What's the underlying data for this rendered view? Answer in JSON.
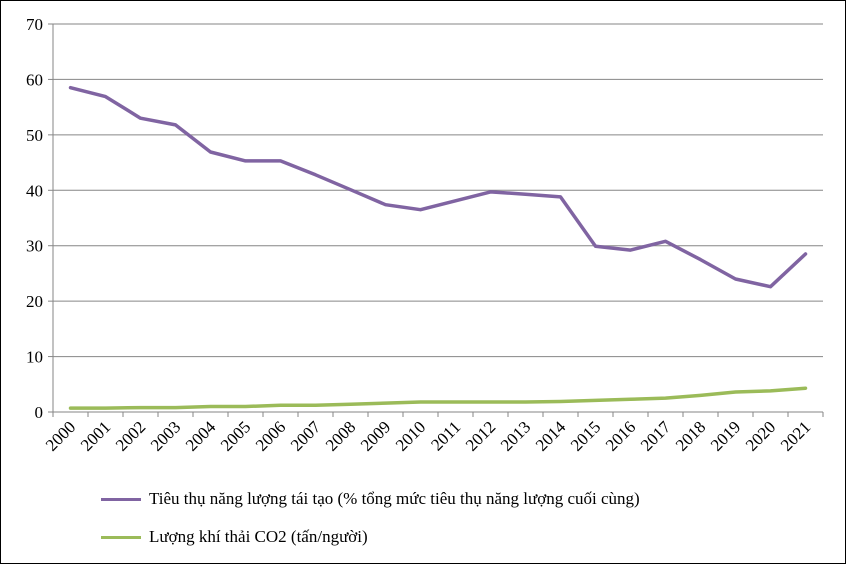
{
  "chart_data": {
    "type": "line",
    "categories": [
      "2000",
      "2001",
      "2002",
      "2003",
      "2004",
      "2005",
      "2006",
      "2007",
      "2008",
      "2009",
      "2010",
      "2011",
      "2012",
      "2013",
      "2014",
      "2015",
      "2016",
      "2017",
      "2018",
      "2019",
      "2020",
      "2021"
    ],
    "ylim": [
      0,
      70
    ],
    "yticks": [
      0,
      10,
      20,
      30,
      40,
      50,
      60,
      70
    ],
    "grid": true,
    "legend_position": "bottom",
    "series": [
      {
        "name": "Tiêu thụ năng lượng tái tạo (% tổng mức tiêu thụ năng lượng cuối cùng)",
        "color": "#8064a2",
        "values": [
          58.5,
          56.9,
          53.0,
          51.8,
          46.9,
          45.3,
          45.3,
          42.8,
          40.1,
          37.4,
          36.5,
          38.1,
          39.7,
          39.3,
          38.8,
          29.9,
          29.2,
          30.8,
          27.5,
          24.0,
          22.6,
          28.5
        ]
      },
      {
        "name": "Lượng khí thải CO2 (tấn/người)",
        "color": "#9bbb59",
        "values": [
          0.7,
          0.7,
          0.8,
          0.8,
          1.0,
          1.0,
          1.2,
          1.2,
          1.4,
          1.6,
          1.8,
          1.8,
          1.8,
          1.8,
          1.9,
          2.1,
          2.3,
          2.5,
          3.0,
          3.6,
          3.8,
          4.3
        ]
      }
    ]
  }
}
